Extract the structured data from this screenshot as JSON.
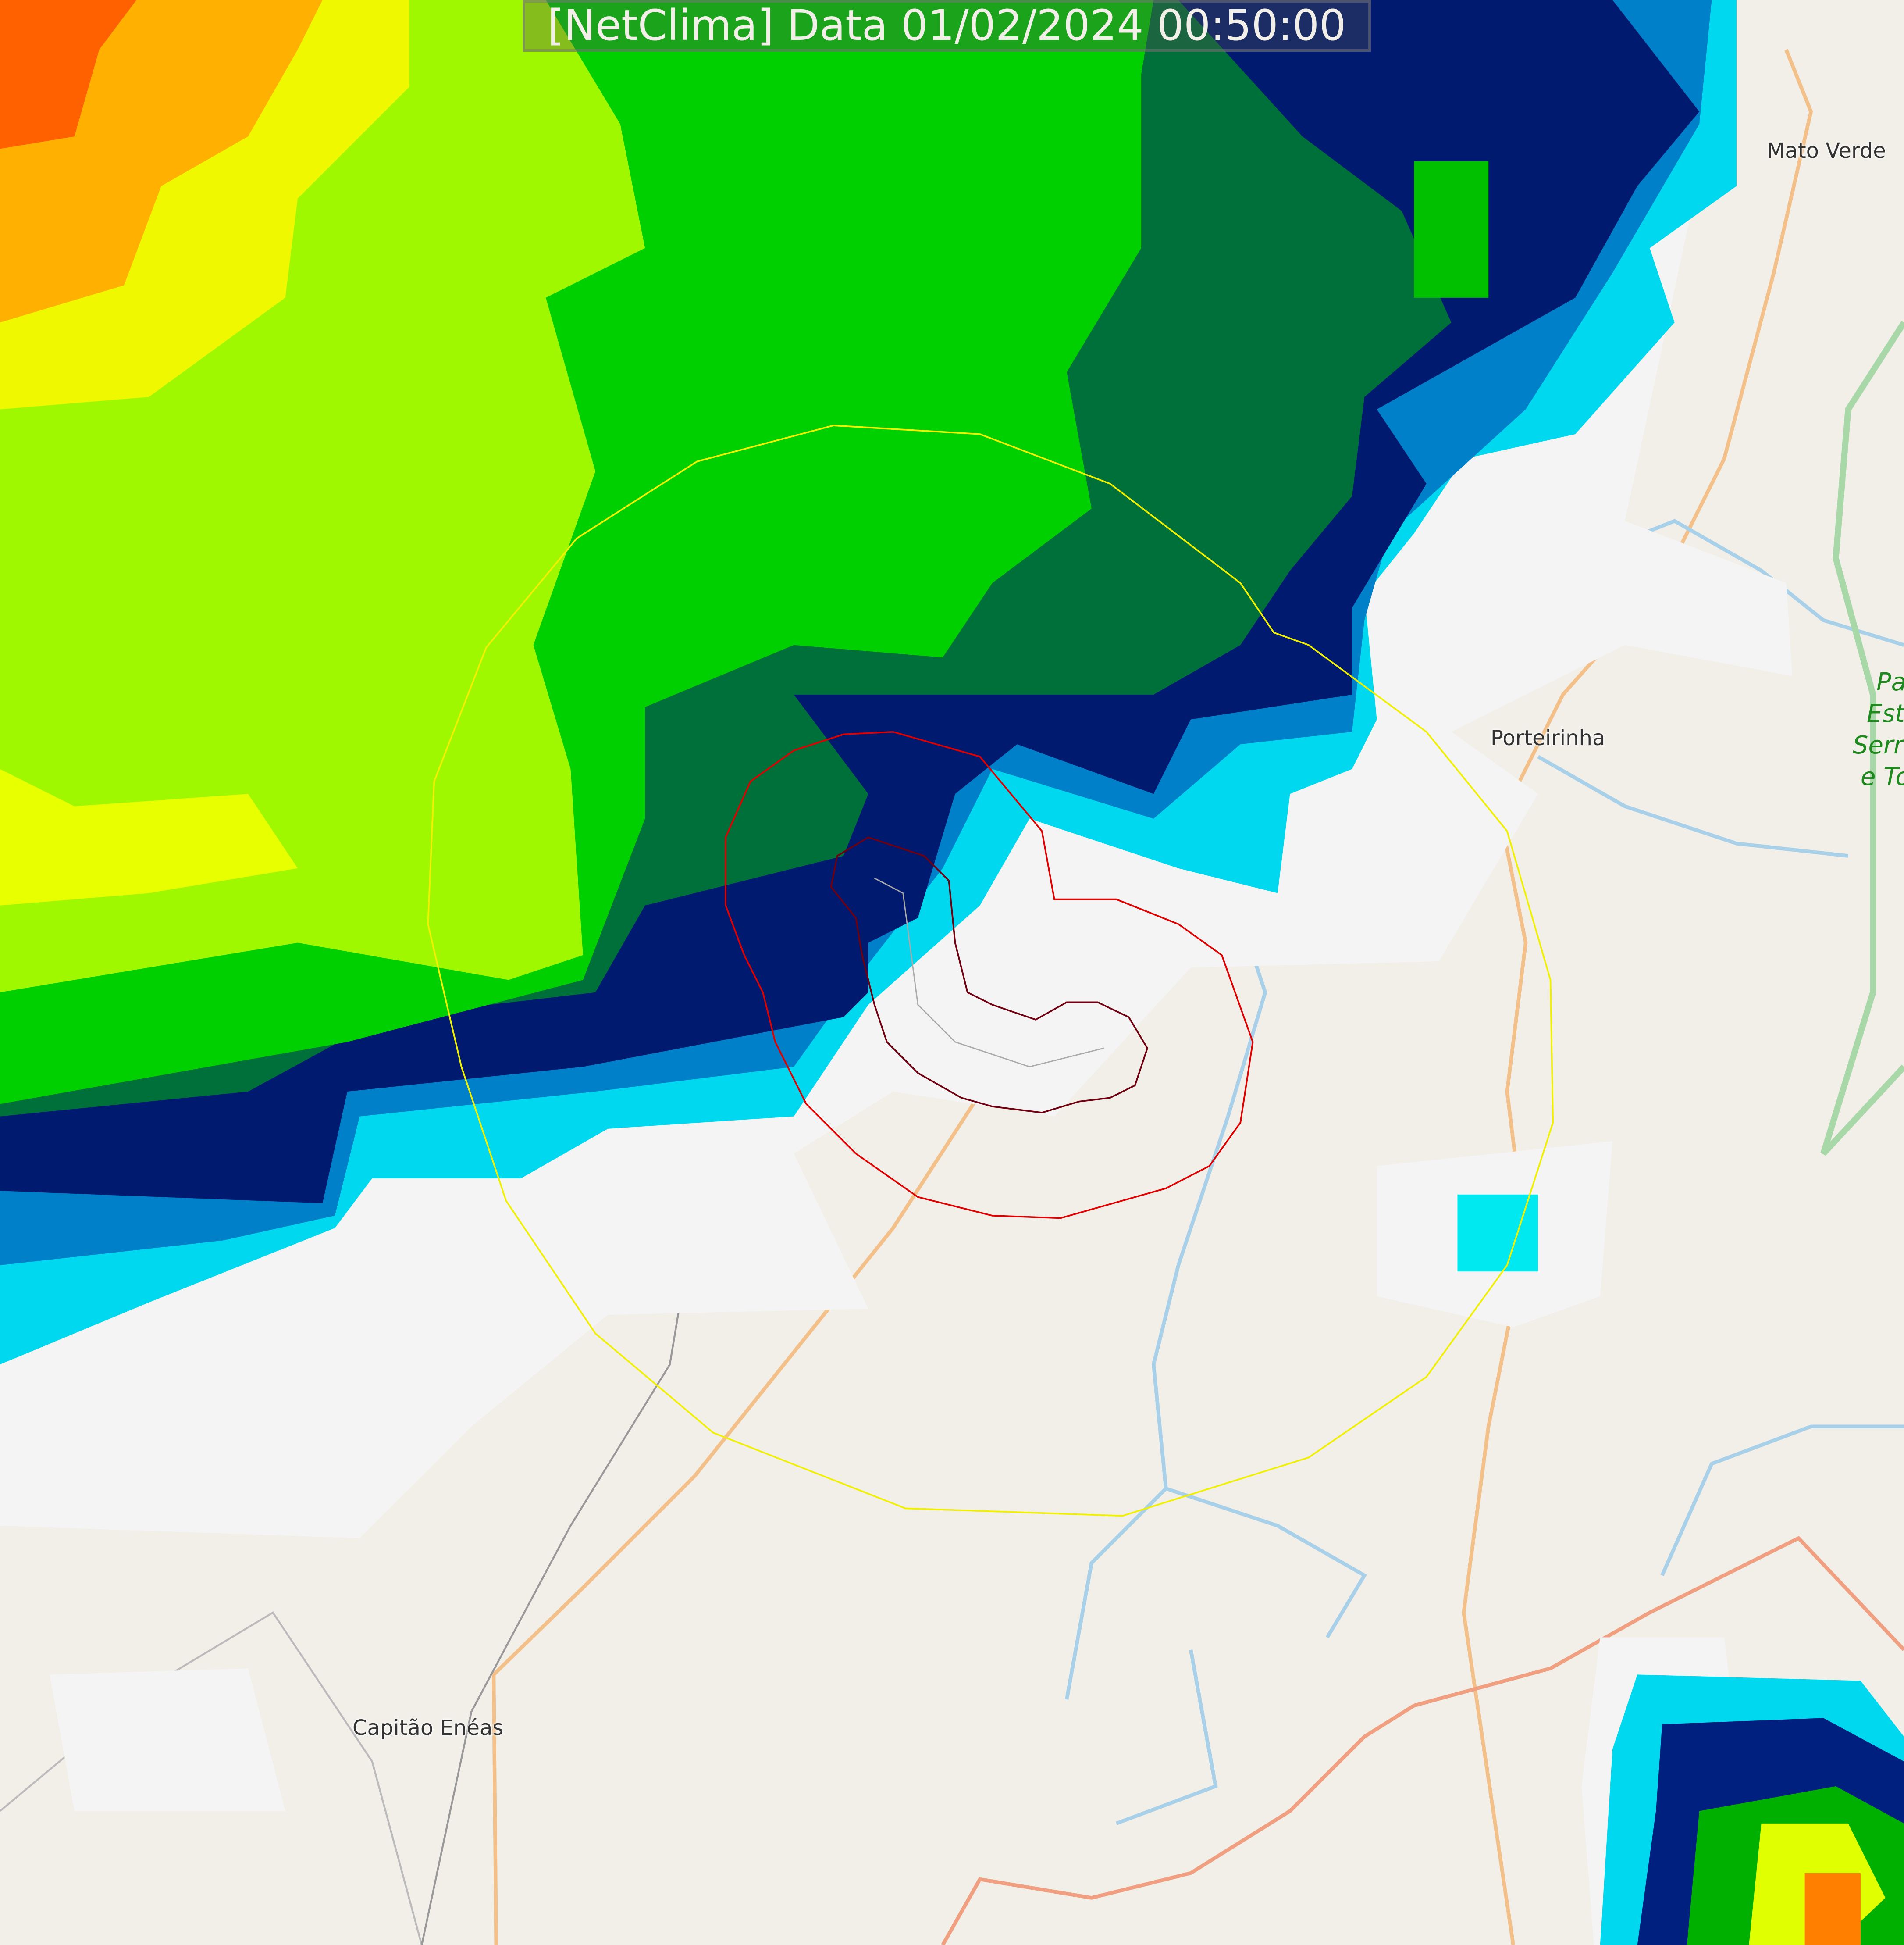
{
  "header": {
    "title": "[NetClima] Data 01/02/2024 00:50:00"
  },
  "places": {
    "mato_verde": "Mato Verde",
    "porteirinha": "Porteirinha",
    "capitao_eneas": "Capitão Enéas",
    "park_lines": [
      "Pa",
      "Est",
      "Serr",
      "e To"
    ]
  },
  "colors": {
    "background": "#f2efe9",
    "radar_scale": [
      "#f4f4f4",
      "#00f0f0",
      "#0090d0",
      "#003090",
      "#001060",
      "#006030",
      "#00c000",
      "#60f000",
      "#b0ff00",
      "#f0ff00",
      "#ffc000",
      "#ff7000",
      "#ff4000"
    ],
    "range_ring_outer": "#f0f000",
    "range_ring_inner": "#e00000",
    "range_ring_core": "#700010",
    "road": "#f0b870",
    "river": "#a8d0e8"
  }
}
